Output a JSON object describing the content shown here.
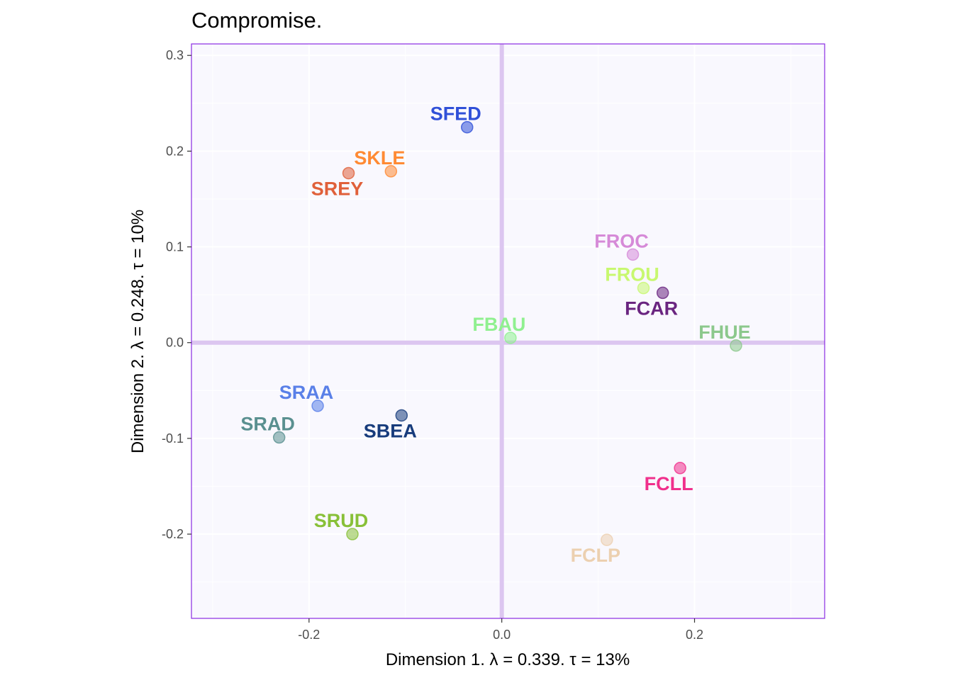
{
  "chart_data": {
    "type": "scatter",
    "title": "Compromise.",
    "xlabel": "Dimension 1.   λ = 0.339.  τ = 13%",
    "ylabel": "Dimension 2.   λ = 0.248.  τ = 10%",
    "xlim": [
      -0.322,
      0.335
    ],
    "ylim": [
      -0.288,
      0.312
    ],
    "xticks": [
      -0.2,
      0.0,
      0.2
    ],
    "xtick_labels": [
      "-0.2",
      "0.0",
      "0.2"
    ],
    "yticks": [
      -0.2,
      -0.1,
      0.0,
      0.1,
      0.2,
      0.3
    ],
    "ytick_labels": [
      "-0.2",
      "-0.1",
      "0.0",
      "0.1",
      "0.2",
      "0.3"
    ],
    "grid": true,
    "reference_lines": {
      "x": 0,
      "y": 0
    },
    "colors": {
      "panel_background": "#f9f8fe",
      "panel_border": "#8a2be2",
      "reference_line": "#dcc6f0",
      "grid_major": "#ffffff",
      "grid_minor": "#ffffff"
    },
    "points": [
      {
        "label": "SFED",
        "x": -0.036,
        "y": 0.225,
        "color": "#3050d8",
        "label_pos": "above"
      },
      {
        "label": "SKLE",
        "x": -0.115,
        "y": 0.179,
        "color": "#ff8a33",
        "label_pos": "above"
      },
      {
        "label": "SREY",
        "x": -0.159,
        "y": 0.177,
        "color": "#e0603a",
        "label_pos": "below"
      },
      {
        "label": "FROC",
        "x": 0.136,
        "y": 0.092,
        "color": "#d68ad8",
        "label_pos": "above"
      },
      {
        "label": "FROU",
        "x": 0.147,
        "y": 0.057,
        "color": "#c8f870",
        "label_pos": "above"
      },
      {
        "label": "FCAR",
        "x": 0.167,
        "y": 0.052,
        "color": "#6a2580",
        "label_pos": "below"
      },
      {
        "label": "FBAU",
        "x": 0.009,
        "y": 0.005,
        "color": "#90f090",
        "label_pos": "above"
      },
      {
        "label": "FHUE",
        "x": 0.243,
        "y": -0.003,
        "color": "#8cc88c",
        "label_pos": "above"
      },
      {
        "label": "SRAA",
        "x": -0.191,
        "y": -0.066,
        "color": "#5a80e8",
        "label_pos": "above"
      },
      {
        "label": "SRAD",
        "x": -0.231,
        "y": -0.099,
        "color": "#5a9090",
        "label_pos": "above"
      },
      {
        "label": "SBEA",
        "x": -0.104,
        "y": -0.076,
        "color": "#183c7c",
        "label_pos": "below"
      },
      {
        "label": "FCLL",
        "x": 0.185,
        "y": -0.131,
        "color": "#f0308c",
        "label_pos": "below"
      },
      {
        "label": "SRUD",
        "x": -0.155,
        "y": -0.2,
        "color": "#88c038",
        "label_pos": "above"
      },
      {
        "label": "FCLP",
        "x": 0.109,
        "y": -0.206,
        "color": "#ecd0b0",
        "label_pos": "below"
      }
    ]
  }
}
